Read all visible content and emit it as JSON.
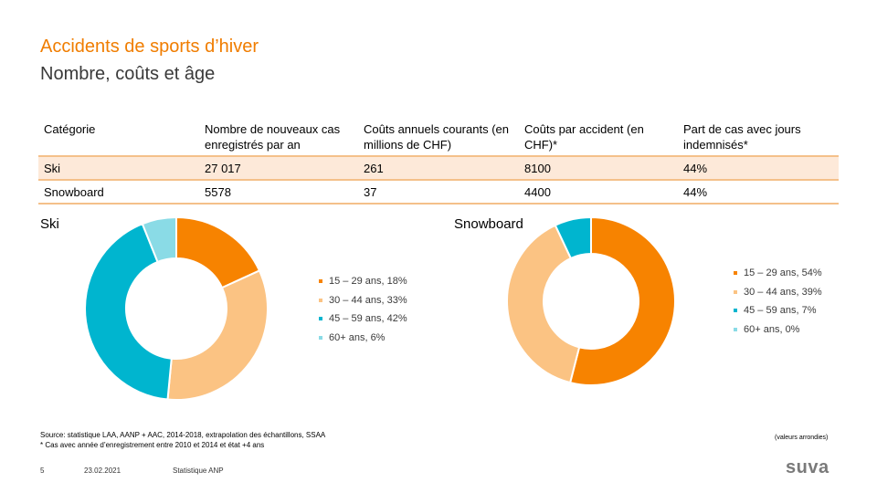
{
  "header": {
    "title": "Accidents de sports d’hiver",
    "subtitle": "Nombre, coûts et âge"
  },
  "table": {
    "columns": [
      "Catégorie",
      "Nombre de nouveaux cas enregistrés par an",
      "Coûts annuels courants (en millions de CHF)",
      "Coûts par accident (en CHF)*",
      "Part de cas avec jours indemnisés*"
    ],
    "rows": [
      [
        "Ski",
        "27 017",
        "261",
        "8100",
        "44%"
      ],
      [
        "Snowboard",
        "5578",
        "37",
        "4400",
        "44%"
      ]
    ]
  },
  "colors": {
    "s1": "#f78300",
    "s2": "#fbc383",
    "s3": "#00b5cf",
    "s4": "#8adbe6",
    "accent": "#f07d00"
  },
  "chart_data": [
    {
      "type": "pie",
      "title": "Ski",
      "categories": [
        "15 – 29 ans",
        "30 – 44 ans",
        "45 – 59 ans",
        "60+ ans"
      ],
      "values": [
        18,
        33,
        42,
        6
      ],
      "legend": [
        "15 – 29 ans, 18%",
        "30 – 44 ans, 33%",
        "45 – 59 ans, 42%",
        "60+ ans,  6%"
      ],
      "legend_position": "right"
    },
    {
      "type": "pie",
      "title": "Snowboard",
      "categories": [
        "15 – 29 ans",
        "30 – 44 ans",
        "45 – 59 ans",
        "60+ ans"
      ],
      "values": [
        54,
        39,
        7,
        0
      ],
      "legend": [
        "15 – 29 ans, 54%",
        "30 – 44 ans, 39%",
        "45 – 59 ans, 7%",
        "60+ ans, 0%"
      ],
      "legend_position": "right"
    }
  ],
  "footer": {
    "source": "Source: statistique LAA, AANP + AAC, 2014-2018, extrapolation des échantillons, SSAA",
    "footnote": "* Cas avec année d’enregistrement entre 2010 et 2014 et état +4 ans",
    "rounding_note": "(valeurs arrondies)",
    "page_number": "5",
    "date": "23.02.2021",
    "label": "Statistique ANP",
    "logo": "suva"
  }
}
